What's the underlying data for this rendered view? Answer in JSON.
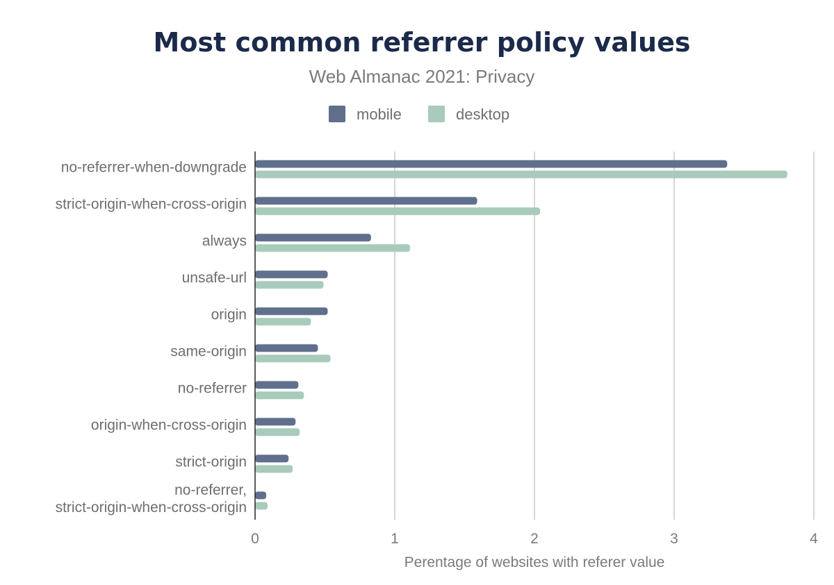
{
  "chart_data": {
    "type": "bar",
    "orientation": "horizontal",
    "title": "Most common referrer policy values",
    "subtitle": "Web Almanac 2021: Privacy",
    "xlabel": "Perentage of websites with referer value",
    "ylabel": "",
    "xlim": [
      0,
      4
    ],
    "xticks": [
      "0",
      "1",
      "2",
      "3",
      "4"
    ],
    "grid": true,
    "legend_position": "top",
    "categories": [
      [
        "no-referrer-when-downgrade"
      ],
      [
        "strict-origin-when-cross-origin"
      ],
      [
        "always"
      ],
      [
        "unsafe-url"
      ],
      [
        "origin"
      ],
      [
        "same-origin"
      ],
      [
        "no-referrer"
      ],
      [
        "origin-when-cross-origin"
      ],
      [
        "strict-origin"
      ],
      [
        "no-referrer,",
        "strict-origin-when-cross-origin"
      ]
    ],
    "series": [
      {
        "name": "mobile",
        "color": "#5f6f8c",
        "values": [
          3.38,
          1.59,
          0.83,
          0.52,
          0.52,
          0.45,
          0.31,
          0.29,
          0.24,
          0.08
        ]
      },
      {
        "name": "desktop",
        "color": "#a8cbbb",
        "values": [
          3.81,
          2.04,
          1.11,
          0.49,
          0.4,
          0.54,
          0.35,
          0.32,
          0.27,
          0.09
        ]
      }
    ]
  }
}
